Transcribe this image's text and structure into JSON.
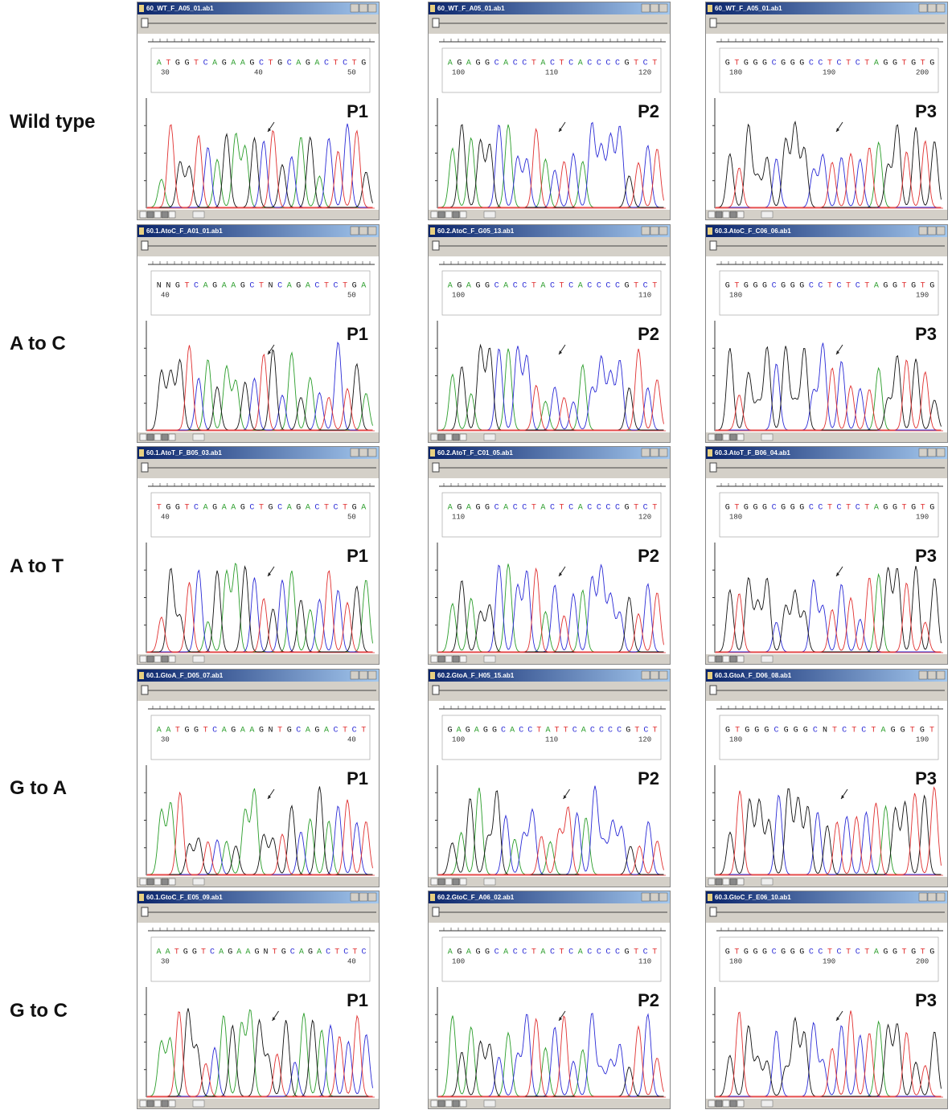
{
  "rows": [
    {
      "label": "Wild type",
      "panels": [
        {
          "title": "60_WT_F_A05_01.ab1",
          "label": "P1",
          "sequence": [
            "A",
            "T",
            "G",
            "G",
            "T",
            "C",
            "A",
            "G",
            "A",
            "A",
            "G",
            "C",
            "T",
            "G",
            "C",
            "A",
            "G",
            "A",
            "C",
            "T",
            "C",
            "T",
            "G"
          ],
          "positions": [
            "30",
            "40",
            "50"
          ]
        },
        {
          "title": "60_WT_F_A05_01.ab1",
          "label": "P2",
          "sequence": [
            "A",
            "G",
            "A",
            "G",
            "G",
            "C",
            "A",
            "C",
            "C",
            "T",
            "A",
            "C",
            "T",
            "C",
            "A",
            "C",
            "C",
            "C",
            "C",
            "G",
            "T",
            "C",
            "T"
          ],
          "positions": [
            "100",
            "110",
            "120"
          ]
        },
        {
          "title": "60_WT_F_A05_01.ab1",
          "label": "P3",
          "sequence": [
            "G",
            "T",
            "G",
            "G",
            "G",
            "C",
            "G",
            "G",
            "G",
            "C",
            "C",
            "T",
            "C",
            "T",
            "C",
            "T",
            "A",
            "G",
            "G",
            "T",
            "G",
            "T",
            "G"
          ],
          "positions": [
            "180",
            "190",
            "200"
          ]
        }
      ]
    },
    {
      "label": "A to C",
      "panels": [
        {
          "title": "60.1.AtoC_F_A01_01.ab1",
          "label": "P1",
          "sequence": [
            "N",
            "N",
            "G",
            "T",
            "C",
            "A",
            "G",
            "A",
            "A",
            "G",
            "C",
            "T",
            "N",
            "C",
            "A",
            "G",
            "A",
            "C",
            "T",
            "C",
            "T",
            "G",
            "A"
          ],
          "positions": [
            "40",
            "50"
          ]
        },
        {
          "title": "60.2.AtoC_F_G05_13.ab1",
          "label": "P2",
          "sequence": [
            "A",
            "G",
            "A",
            "G",
            "G",
            "C",
            "A",
            "C",
            "C",
            "T",
            "A",
            "C",
            "T",
            "C",
            "A",
            "C",
            "C",
            "C",
            "C",
            "G",
            "T",
            "C",
            "T"
          ],
          "positions": [
            "100",
            "110"
          ]
        },
        {
          "title": "60.3.AtoC_F_C06_06.ab1",
          "label": "P3",
          "sequence": [
            "G",
            "T",
            "G",
            "G",
            "G",
            "C",
            "G",
            "G",
            "G",
            "C",
            "C",
            "T",
            "C",
            "T",
            "C",
            "T",
            "A",
            "G",
            "G",
            "T",
            "G",
            "T",
            "G"
          ],
          "positions": [
            "180",
            "190"
          ]
        }
      ]
    },
    {
      "label": "A to T",
      "panels": [
        {
          "title": "60.1.AtoT_F_B05_03.ab1",
          "label": "P1",
          "sequence": [
            "T",
            "G",
            "G",
            "T",
            "C",
            "A",
            "G",
            "A",
            "A",
            "G",
            "C",
            "T",
            "G",
            "C",
            "A",
            "G",
            "A",
            "C",
            "T",
            "C",
            "T",
            "G",
            "A"
          ],
          "positions": [
            "40",
            "50"
          ]
        },
        {
          "title": "60.2.AtoT_F_C01_05.ab1",
          "label": "P2",
          "sequence": [
            "A",
            "G",
            "A",
            "G",
            "G",
            "C",
            "A",
            "C",
            "C",
            "T",
            "A",
            "C",
            "T",
            "C",
            "A",
            "C",
            "C",
            "C",
            "C",
            "G",
            "T",
            "C",
            "T"
          ],
          "positions": [
            "110",
            "120"
          ]
        },
        {
          "title": "60.3.AtoT_F_B06_04.ab1",
          "label": "P3",
          "sequence": [
            "G",
            "T",
            "G",
            "G",
            "G",
            "C",
            "G",
            "G",
            "G",
            "C",
            "C",
            "T",
            "C",
            "T",
            "C",
            "T",
            "A",
            "G",
            "G",
            "T",
            "G",
            "T",
            "G"
          ],
          "positions": [
            "180",
            "190"
          ]
        }
      ]
    },
    {
      "label": "G to A",
      "panels": [
        {
          "title": "60.1.GtoA_F_D05_07.ab1",
          "label": "P1",
          "sequence": [
            "A",
            "A",
            "T",
            "G",
            "G",
            "T",
            "C",
            "A",
            "G",
            "A",
            "A",
            "G",
            "N",
            "T",
            "G",
            "C",
            "A",
            "G",
            "A",
            "C",
            "T",
            "C",
            "T"
          ],
          "positions": [
            "30",
            "40"
          ]
        },
        {
          "title": "60.2.GtoA_F_H05_15.ab1",
          "label": "P2",
          "sequence": [
            "G",
            "A",
            "G",
            "A",
            "G",
            "G",
            "C",
            "A",
            "C",
            "C",
            "T",
            "A",
            "T",
            "T",
            "C",
            "A",
            "C",
            "C",
            "C",
            "C",
            "G",
            "T",
            "C",
            "T"
          ],
          "positions": [
            "100",
            "110",
            "120"
          ]
        },
        {
          "title": "60.3.GtoA_F_D06_08.ab1",
          "label": "P3",
          "sequence": [
            "G",
            "T",
            "G",
            "G",
            "G",
            "C",
            "G",
            "G",
            "G",
            "C",
            "N",
            "T",
            "C",
            "T",
            "C",
            "T",
            "A",
            "G",
            "G",
            "T",
            "G",
            "T"
          ],
          "positions": [
            "180",
            "190"
          ]
        }
      ]
    },
    {
      "label": "G to C",
      "panels": [
        {
          "title": "60.1.GtoC_F_E05_09.ab1",
          "label": "P1",
          "sequence": [
            "A",
            "A",
            "T",
            "G",
            "G",
            "T",
            "C",
            "A",
            "G",
            "A",
            "A",
            "G",
            "N",
            "T",
            "G",
            "C",
            "A",
            "G",
            "A",
            "C",
            "T",
            "C",
            "T",
            "C"
          ],
          "positions": [
            "30",
            "40"
          ]
        },
        {
          "title": "60.2.GtoC_F_A06_02.ab1",
          "label": "P2",
          "sequence": [
            "A",
            "G",
            "A",
            "G",
            "G",
            "C",
            "A",
            "C",
            "C",
            "T",
            "A",
            "C",
            "T",
            "C",
            "A",
            "C",
            "C",
            "C",
            "C",
            "G",
            "T",
            "C",
            "T"
          ],
          "positions": [
            "100",
            "110"
          ]
        },
        {
          "title": "60.3.GtoC_F_E06_10.ab1",
          "label": "P3",
          "sequence": [
            "G",
            "T",
            "G",
            "G",
            "G",
            "C",
            "G",
            "G",
            "G",
            "C",
            "C",
            "T",
            "C",
            "T",
            "C",
            "T",
            "A",
            "G",
            "G",
            "T",
            "G",
            "T",
            "G"
          ],
          "positions": [
            "180",
            "190",
            "200"
          ]
        }
      ]
    }
  ]
}
